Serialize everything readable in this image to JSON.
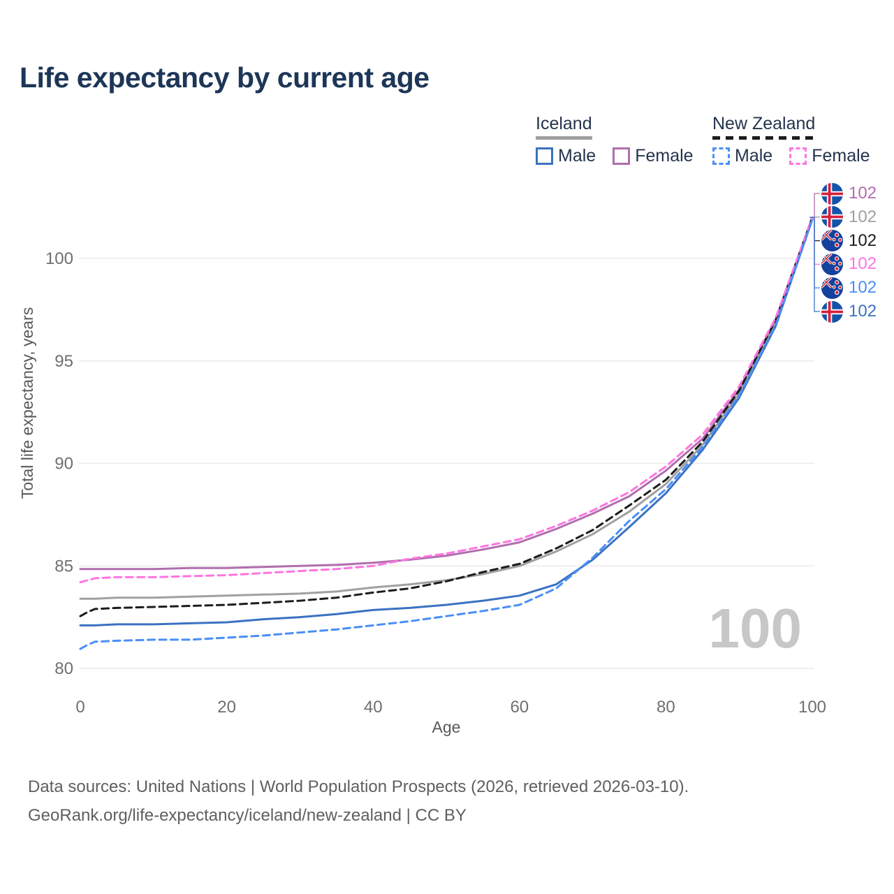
{
  "title": "Life expectancy by current age",
  "legend": {
    "iceland": {
      "title": "Iceland",
      "male": "Male",
      "female": "Female"
    },
    "new_zealand": {
      "title": "New Zealand",
      "male": "Male",
      "female": "Female"
    }
  },
  "watermark": "100",
  "footer": {
    "line1": "Data sources: United Nations | World Population Prospects (2026, retrieved 2026-03-10).",
    "line2": "GeoRank.org/life-expectancy/iceland/new-zealand | CC BY"
  },
  "chart_data": {
    "type": "line",
    "title": "Life expectancy by current age",
    "xlabel": "Age",
    "ylabel": "Total life expectancy, years",
    "xlim": [
      0,
      100
    ],
    "ylim": [
      79.5,
      103
    ],
    "x_ticks": [
      0,
      20,
      40,
      60,
      80,
      100
    ],
    "y_ticks": [
      80,
      85,
      90,
      95,
      100
    ],
    "grid": "horizontal",
    "legend_position": "top-right",
    "x": [
      0,
      1,
      2,
      5,
      10,
      15,
      20,
      25,
      30,
      35,
      40,
      45,
      50,
      55,
      60,
      65,
      70,
      75,
      80,
      85,
      90,
      95,
      100
    ],
    "series": [
      {
        "name": "Iceland Female",
        "country": "Iceland",
        "group": "Female",
        "style": "solid",
        "color": "#b06ead",
        "values": [
          84.85,
          84.85,
          84.85,
          84.85,
          84.85,
          84.9,
          84.9,
          84.95,
          85.0,
          85.05,
          85.15,
          85.3,
          85.5,
          85.8,
          86.15,
          86.8,
          87.55,
          88.4,
          89.65,
          91.2,
          93.6,
          97.0,
          102
        ]
      },
      {
        "name": "Iceland",
        "country": "Iceland",
        "group": "Total",
        "style": "solid",
        "color": "#a0a0a0",
        "values": [
          83.4,
          83.4,
          83.4,
          83.45,
          83.45,
          83.5,
          83.55,
          83.6,
          83.65,
          83.75,
          83.95,
          84.1,
          84.3,
          84.6,
          85.0,
          85.7,
          86.55,
          87.65,
          89.0,
          90.9,
          93.4,
          96.85,
          101.95
        ]
      },
      {
        "name": "Iceland Male",
        "country": "Iceland",
        "group": "Male",
        "style": "solid",
        "color": "#3b72c1",
        "values": [
          82.1,
          82.1,
          82.1,
          82.15,
          82.15,
          82.2,
          82.25,
          82.4,
          82.5,
          82.65,
          82.85,
          82.95,
          83.1,
          83.3,
          83.55,
          84.1,
          85.3,
          86.9,
          88.55,
          90.65,
          93.2,
          96.7,
          101.9
        ]
      },
      {
        "name": "New Zealand",
        "country": "New Zealand",
        "group": "Total",
        "style": "dashed",
        "color": "#1c1c1c",
        "values": [
          82.55,
          82.75,
          82.9,
          82.95,
          83.0,
          83.05,
          83.1,
          83.2,
          83.3,
          83.45,
          83.7,
          83.9,
          84.25,
          84.7,
          85.1,
          85.85,
          86.75,
          87.95,
          89.2,
          91.05,
          93.55,
          97.0,
          102
        ]
      },
      {
        "name": "New Zealand Female",
        "country": "New Zealand",
        "group": "Female",
        "style": "dashed",
        "color": "#ff74e0",
        "values": [
          84.2,
          84.3,
          84.4,
          84.45,
          84.45,
          84.5,
          84.55,
          84.65,
          84.75,
          84.85,
          85.0,
          85.35,
          85.6,
          85.95,
          86.3,
          86.95,
          87.7,
          88.6,
          89.85,
          91.4,
          93.75,
          97.1,
          102
        ]
      },
      {
        "name": "New Zealand Male",
        "country": "New Zealand",
        "group": "Male",
        "style": "dashed",
        "color": "#4a8ef7",
        "values": [
          80.95,
          81.15,
          81.3,
          81.35,
          81.4,
          81.4,
          81.5,
          81.6,
          81.75,
          81.9,
          82.1,
          82.3,
          82.55,
          82.8,
          83.1,
          83.9,
          85.4,
          87.2,
          88.75,
          90.8,
          93.3,
          96.75,
          101.9
        ]
      }
    ],
    "end_labels": [
      {
        "series": "Iceland Female",
        "flag": "iceland",
        "text": "102"
      },
      {
        "series": "Iceland",
        "flag": "iceland",
        "text": "102"
      },
      {
        "series": "New Zealand",
        "flag": "new_zealand",
        "text": "102"
      },
      {
        "series": "New Zealand Female",
        "flag": "new_zealand",
        "text": "102"
      },
      {
        "series": "New Zealand Male",
        "flag": "new_zealand",
        "text": "102"
      },
      {
        "series": "Iceland Male",
        "flag": "iceland",
        "text": "102"
      }
    ]
  }
}
